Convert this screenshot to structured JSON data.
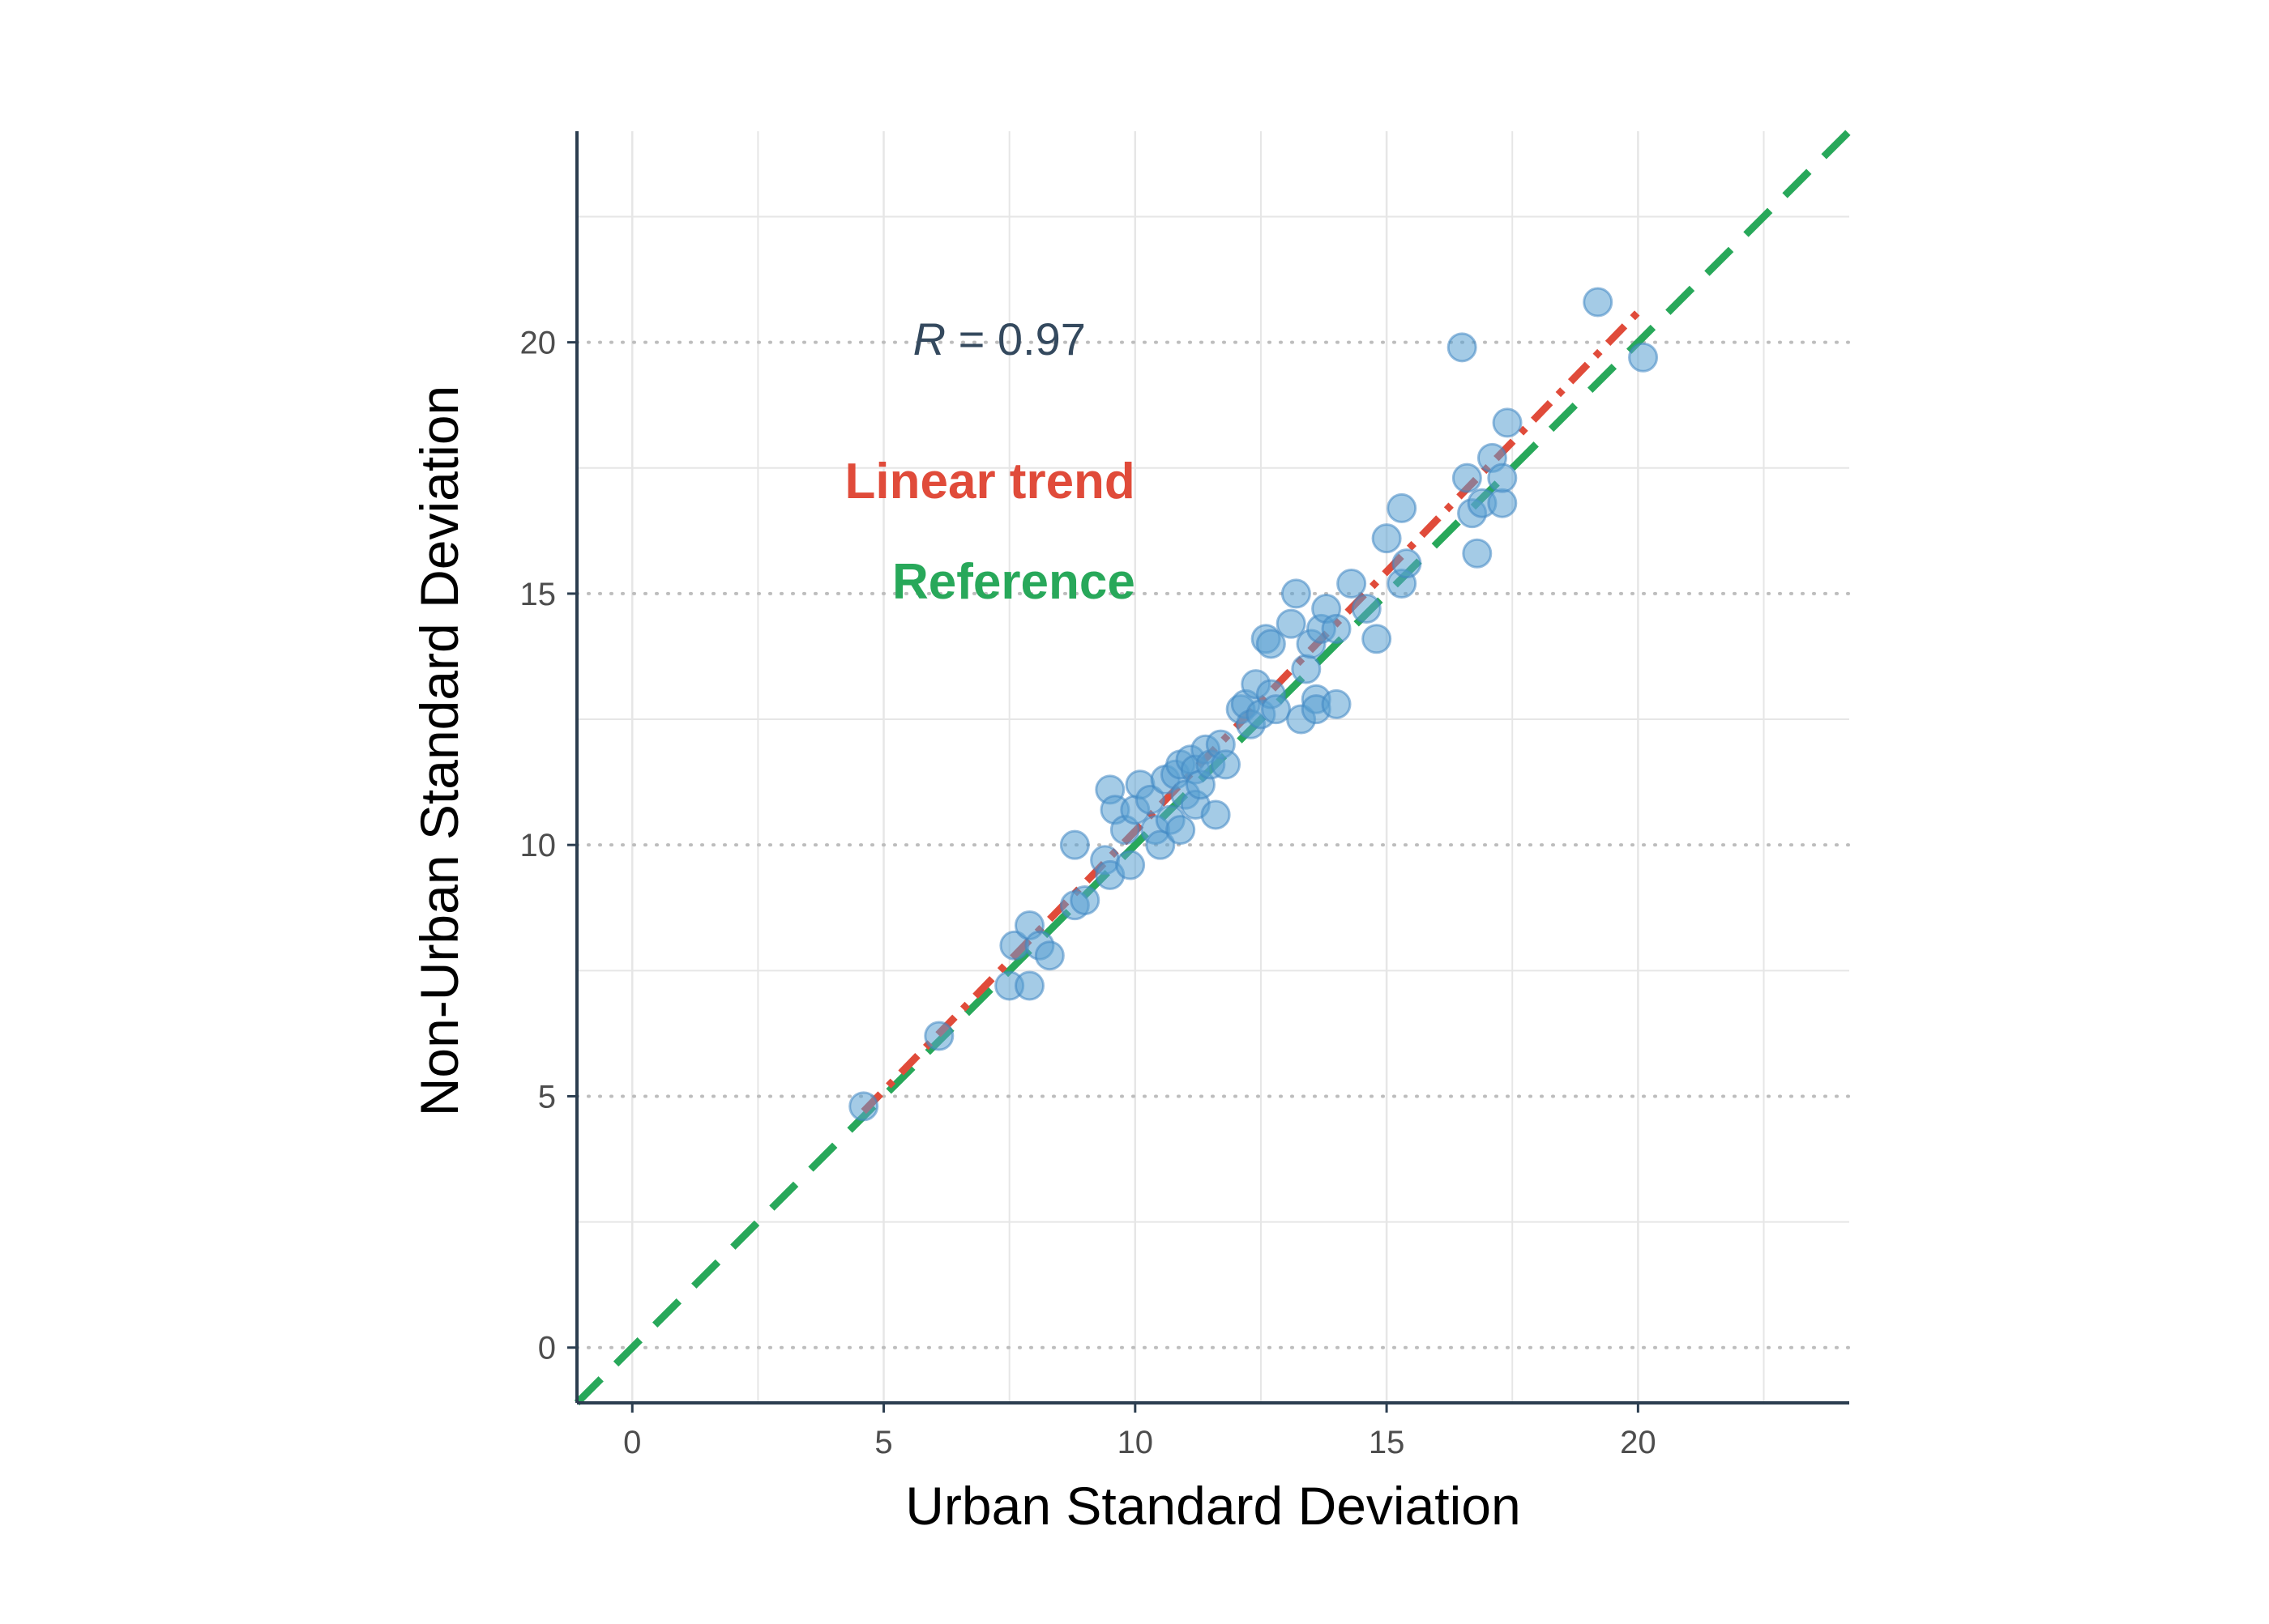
{
  "chart_data": {
    "type": "scatter",
    "xlabel": "Urban Standard Deviation",
    "ylabel": "Non-Urban Standard Deviation",
    "xlim": [
      -1.1,
      24.2
    ],
    "ylim": [
      -1.1,
      24.2
    ],
    "x_ticks": [
      0,
      5,
      10,
      15,
      20
    ],
    "y_ticks": [
      0,
      5,
      10,
      15,
      20
    ],
    "x_tick_labels": [
      "0",
      "5",
      "10",
      "15",
      "20"
    ],
    "y_tick_labels": [
      "0",
      "5",
      "10",
      "15",
      "20"
    ],
    "grid": true,
    "annotations": {
      "correlation_symbol": "R",
      "correlation_text": " = 0.97",
      "trend_label": "Linear trend",
      "reference_label": "Reference"
    },
    "colors": {
      "points": "#5aa0d2",
      "point_stroke": "#3f87c3",
      "trend": "#e04b3a",
      "reference": "#28a85a",
      "axis": "#2c3e50",
      "annotation_text": "#34495e",
      "grid": "#e6e6e6",
      "dotted_grid": "#bdbdbd"
    },
    "trend_line": {
      "x": [
        4.6,
        20.0
      ],
      "y": [
        4.7,
        20.6
      ]
    },
    "reference_line": {
      "x": [
        -1.1,
        24.2
      ],
      "y": [
        -1.1,
        24.2
      ]
    },
    "points": [
      [
        4.6,
        4.8
      ],
      [
        6.1,
        6.2
      ],
      [
        7.5,
        7.2
      ],
      [
        7.6,
        8.0
      ],
      [
        7.9,
        7.2
      ],
      [
        7.9,
        8.4
      ],
      [
        8.1,
        8.0
      ],
      [
        8.3,
        7.8
      ],
      [
        8.8,
        8.8
      ],
      [
        9.0,
        8.9
      ],
      [
        8.8,
        10.0
      ],
      [
        9.4,
        9.7
      ],
      [
        9.5,
        9.4
      ],
      [
        9.5,
        11.1
      ],
      [
        9.6,
        10.7
      ],
      [
        9.8,
        10.3
      ],
      [
        9.9,
        9.6
      ],
      [
        10.0,
        10.7
      ],
      [
        10.1,
        11.2
      ],
      [
        10.3,
        10.9
      ],
      [
        10.4,
        10.3
      ],
      [
        10.5,
        10.0
      ],
      [
        10.6,
        11.3
      ],
      [
        10.7,
        10.5
      ],
      [
        10.8,
        11.4
      ],
      [
        10.9,
        10.3
      ],
      [
        10.9,
        11.6
      ],
      [
        11.0,
        11.0
      ],
      [
        11.1,
        11.7
      ],
      [
        11.2,
        10.8
      ],
      [
        11.2,
        11.5
      ],
      [
        11.3,
        11.2
      ],
      [
        11.4,
        11.9
      ],
      [
        11.5,
        11.6
      ],
      [
        11.6,
        10.6
      ],
      [
        11.7,
        12.0
      ],
      [
        11.8,
        11.6
      ],
      [
        12.1,
        12.7
      ],
      [
        12.2,
        12.8
      ],
      [
        12.3,
        12.4
      ],
      [
        12.4,
        13.2
      ],
      [
        12.5,
        12.6
      ],
      [
        12.6,
        14.1
      ],
      [
        12.7,
        13.0
      ],
      [
        12.7,
        14.0
      ],
      [
        12.8,
        12.7
      ],
      [
        13.1,
        14.4
      ],
      [
        13.2,
        15.0
      ],
      [
        13.3,
        12.5
      ],
      [
        13.4,
        13.5
      ],
      [
        13.5,
        14.0
      ],
      [
        13.6,
        12.9
      ],
      [
        13.6,
        12.7
      ],
      [
        13.7,
        14.3
      ],
      [
        13.8,
        14.7
      ],
      [
        14.0,
        14.3
      ],
      [
        14.0,
        12.8
      ],
      [
        14.3,
        15.2
      ],
      [
        14.6,
        14.7
      ],
      [
        14.8,
        14.1
      ],
      [
        15.0,
        16.1
      ],
      [
        15.3,
        16.7
      ],
      [
        15.3,
        15.2
      ],
      [
        15.4,
        15.6
      ],
      [
        16.5,
        19.9
      ],
      [
        16.6,
        17.3
      ],
      [
        16.7,
        16.6
      ],
      [
        16.8,
        15.8
      ],
      [
        16.9,
        16.8
      ],
      [
        17.1,
        17.7
      ],
      [
        17.3,
        16.8
      ],
      [
        17.3,
        17.3
      ],
      [
        17.4,
        18.4
      ],
      [
        19.2,
        20.8
      ],
      [
        20.1,
        19.7
      ]
    ]
  }
}
